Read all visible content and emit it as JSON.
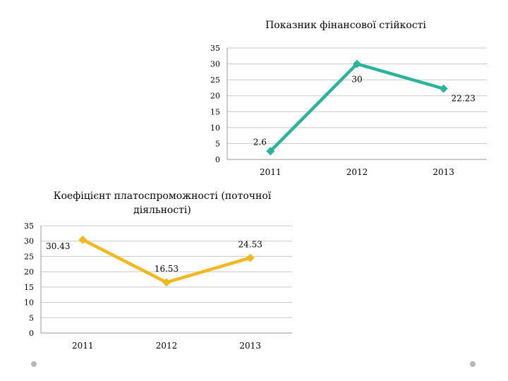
{
  "chart_data": [
    {
      "type": "line",
      "title": "Показник фінансової стійкості",
      "categories": [
        "2011",
        "2012",
        "2013"
      ],
      "series": [
        {
          "values": [
            2.6,
            30,
            22.23
          ]
        }
      ],
      "data_labels": [
        "2.6",
        "30",
        "22.23"
      ],
      "y_ticks": [
        "0",
        "5",
        "10",
        "15",
        "20",
        "25",
        "30",
        "35"
      ],
      "ylim": [
        0,
        35
      ],
      "grid": true,
      "color": "#2bb39b"
    },
    {
      "type": "line",
      "title": "Коефіцієнт платоспроможності (поточної діяльності)",
      "categories": [
        "2011",
        "2012",
        "2013"
      ],
      "series": [
        {
          "values": [
            30.43,
            16.53,
            24.53
          ]
        }
      ],
      "data_labels": [
        "30.43",
        "16.53",
        "24.53"
      ],
      "y_ticks": [
        "0",
        "5",
        "10",
        "15",
        "20",
        "25",
        "30",
        "35"
      ],
      "ylim": [
        0,
        35
      ],
      "grid": true,
      "color": "#f2b81d"
    }
  ]
}
